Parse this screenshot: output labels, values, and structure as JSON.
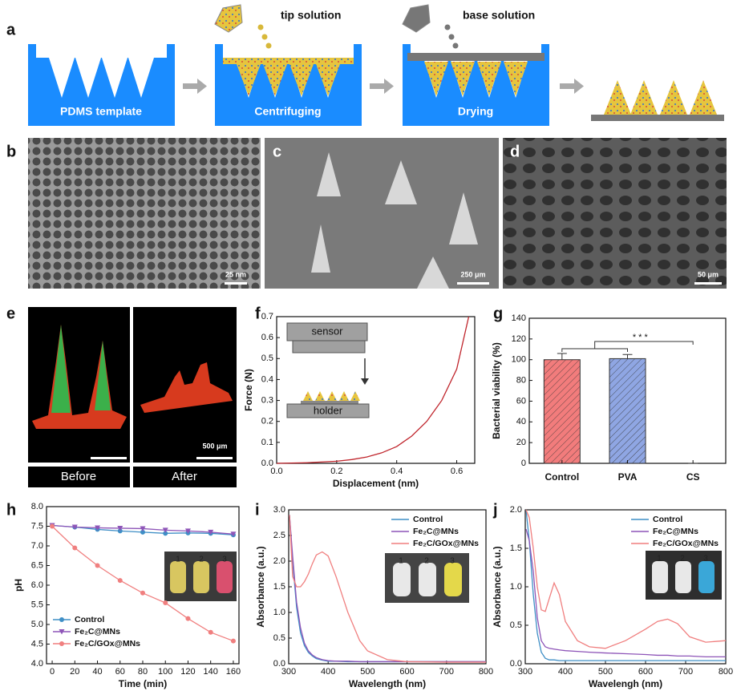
{
  "panel_labels": [
    "a",
    "b",
    "c",
    "d",
    "e",
    "f",
    "g",
    "h",
    "i",
    "j"
  ],
  "panel_a": {
    "tip_label": "tip solution",
    "base_label": "base solution",
    "steps": [
      "PDMS template",
      "Centrifuging",
      "Drying"
    ]
  },
  "scale_bars": [
    "25 nm",
    "250 μm",
    "50 μm",
    "500 μm"
  ],
  "panel_e": {
    "captions": [
      "Before",
      "After"
    ]
  },
  "panel_f_inset": {
    "sensor": "sensor",
    "holder": "holder"
  },
  "inset_tube_numbers": [
    "1",
    "2",
    "3"
  ],
  "chart_data": [
    {
      "type": "line",
      "xlabel": "Displacement (nm)",
      "ylabel": "Force (N)",
      "x": [
        0,
        0.1,
        0.2,
        0.25,
        0.3,
        0.35,
        0.4,
        0.45,
        0.5,
        0.55,
        0.6,
        0.64
      ],
      "series": [
        {
          "color": "#c0262d",
          "values": [
            0,
            0.003,
            0.01,
            0.018,
            0.03,
            0.05,
            0.08,
            0.13,
            0.2,
            0.3,
            0.45,
            0.7
          ]
        }
      ],
      "xlim": [
        0,
        0.66
      ],
      "ylim": [
        0,
        0.7
      ],
      "xticks": [
        {
          "value": 0,
          "label": "0.0"
        },
        {
          "value": 0.2,
          "label": "0.2"
        },
        {
          "value": 0.4,
          "label": "0.4"
        },
        {
          "value": 0.6,
          "label": "0.6"
        }
      ],
      "yticks": [
        {
          "value": 0,
          "label": "0.0"
        },
        {
          "value": 0.1,
          "label": "0.1"
        },
        {
          "value": 0.2,
          "label": "0.2"
        },
        {
          "value": 0.3,
          "label": "0.3"
        },
        {
          "value": 0.4,
          "label": "0.4"
        },
        {
          "value": 0.5,
          "label": "0.5"
        },
        {
          "value": 0.6,
          "label": "0.6"
        },
        {
          "value": 0.7,
          "label": "0.7"
        }
      ]
    },
    {
      "type": "bar",
      "ylabel": "Bacterial viability (%)",
      "categories": [
        "Control",
        "PVA",
        "CS"
      ],
      "values": [
        100,
        101,
        0
      ],
      "errors": [
        6,
        4,
        0
      ],
      "colors": [
        "#f27c7c",
        "#8fa6e3",
        "#cccccc"
      ],
      "annotation": "* * *",
      "ylim": [
        0,
        140
      ],
      "yticks": [
        0,
        20,
        40,
        60,
        80,
        100,
        120,
        140
      ]
    },
    {
      "type": "line",
      "xlabel": "Time (min)",
      "ylabel": "pH",
      "legend": "lower left",
      "x": [
        0,
        20,
        40,
        60,
        80,
        100,
        120,
        140,
        160
      ],
      "series": [
        {
          "name": "Control",
          "color": "#3f8fc6",
          "marker": "circle",
          "values": [
            7.52,
            7.48,
            7.42,
            7.38,
            7.35,
            7.32,
            7.33,
            7.32,
            7.28
          ]
        },
        {
          "name": "Fe₂C@MNs",
          "color": "#8e55b8",
          "marker": "triangle",
          "values": [
            7.52,
            7.48,
            7.46,
            7.45,
            7.44,
            7.4,
            7.38,
            7.35,
            7.3
          ]
        },
        {
          "name": "Fe₂C/GOx@MNs",
          "color": "#f07f7f",
          "marker": "circle",
          "values": [
            7.5,
            6.95,
            6.5,
            6.12,
            5.8,
            5.55,
            5.15,
            4.8,
            4.58
          ]
        }
      ],
      "xlim": [
        -5,
        165
      ],
      "ylim": [
        4.0,
        8.0
      ],
      "xticks": [
        0,
        20,
        40,
        60,
        80,
        100,
        120,
        140,
        160
      ],
      "yticks": [
        {
          "value": 4,
          "label": "4.0"
        },
        {
          "value": 4.5,
          "label": "4.5"
        },
        {
          "value": 5,
          "label": "5.0"
        },
        {
          "value": 5.5,
          "label": "5.5"
        },
        {
          "value": 6,
          "label": "6.0"
        },
        {
          "value": 6.5,
          "label": "6.5"
        },
        {
          "value": 7,
          "label": "7.0"
        },
        {
          "value": 7.5,
          "label": "7.5"
        },
        {
          "value": 8,
          "label": "8.0"
        }
      ]
    },
    {
      "type": "line",
      "xlabel": "Wavelength (nm)",
      "ylabel": "Absorbance (a.u.)",
      "legend": "upper right",
      "x": [
        302,
        310,
        320,
        330,
        340,
        350,
        360,
        370,
        385,
        400,
        420,
        450,
        480,
        500,
        550,
        600,
        700,
        800
      ],
      "series": [
        {
          "name": "Control",
          "color": "#3f8fc6",
          "values": [
            2.9,
            2.0,
            1.1,
            0.6,
            0.35,
            0.22,
            0.15,
            0.1,
            0.07,
            0.05,
            0.05,
            0.04,
            0.04,
            0.04,
            0.04,
            0.04,
            0.04,
            0.04
          ]
        },
        {
          "name": "Fe₂C@MNs",
          "color": "#8e55b8",
          "values": [
            2.9,
            2.1,
            1.2,
            0.7,
            0.4,
            0.25,
            0.17,
            0.12,
            0.08,
            0.06,
            0.05,
            0.05,
            0.04,
            0.04,
            0.04,
            0.04,
            0.04,
            0.04
          ]
        },
        {
          "name": "Fe₂C/GOx@MNs",
          "color": "#f07f7f",
          "values": [
            2.9,
            1.7,
            1.5,
            1.5,
            1.6,
            1.75,
            1.95,
            2.12,
            2.18,
            2.1,
            1.7,
            1.0,
            0.45,
            0.25,
            0.08,
            0.04,
            0.03,
            0.03
          ]
        }
      ],
      "xlim": [
        300,
        800
      ],
      "ylim": [
        0,
        3.0
      ],
      "xticks": [
        300,
        400,
        500,
        600,
        700,
        800
      ],
      "yticks": [
        {
          "value": 0,
          "label": "0.0"
        },
        {
          "value": 0.5,
          "label": "0.5"
        },
        {
          "value": 1,
          "label": "1.0"
        },
        {
          "value": 1.5,
          "label": "1.5"
        },
        {
          "value": 2,
          "label": "2.0"
        },
        {
          "value": 2.5,
          "label": "2.5"
        },
        {
          "value": 3,
          "label": "3.0"
        }
      ]
    },
    {
      "type": "line",
      "xlabel": "Wavelengh (nm)",
      "ylabel": "Absorbance (a.u.)",
      "legend": "upper right",
      "x": [
        302,
        310,
        320,
        330,
        340,
        350,
        360,
        372,
        385,
        400,
        430,
        460,
        500,
        550,
        600,
        630,
        655,
        680,
        710,
        750,
        800
      ],
      "series": [
        {
          "name": "Control",
          "color": "#3f8fc6",
          "values": [
            2.0,
            1.6,
            0.9,
            0.4,
            0.15,
            0.07,
            0.05,
            0.05,
            0.04,
            0.04,
            0.04,
            0.04,
            0.04,
            0.04,
            0.04,
            0.04,
            0.04,
            0.04,
            0.04,
            0.04,
            0.04
          ]
        },
        {
          "name": "Fe₂C@MNs",
          "color": "#8e55b8",
          "values": [
            1.75,
            1.6,
            1.2,
            0.6,
            0.3,
            0.22,
            0.2,
            0.19,
            0.18,
            0.17,
            0.16,
            0.15,
            0.14,
            0.13,
            0.12,
            0.11,
            0.11,
            0.1,
            0.1,
            0.09,
            0.09
          ]
        },
        {
          "name": "Fe₂C/GOx@MNs",
          "color": "#f07f7f",
          "values": [
            2.0,
            1.9,
            1.5,
            1.0,
            0.7,
            0.68,
            0.85,
            1.05,
            0.9,
            0.55,
            0.3,
            0.22,
            0.2,
            0.3,
            0.45,
            0.55,
            0.58,
            0.52,
            0.35,
            0.28,
            0.3
          ]
        }
      ],
      "xlim": [
        300,
        800
      ],
      "ylim": [
        0,
        2.0
      ],
      "xticks": [
        300,
        400,
        500,
        600,
        700,
        800
      ],
      "yticks": [
        {
          "value": 0,
          "label": "0.0"
        },
        {
          "value": 0.5,
          "label": "0.5"
        },
        {
          "value": 1,
          "label": "1.0"
        },
        {
          "value": 1.5,
          "label": "1.5"
        },
        {
          "value": 2,
          "label": "2.0"
        }
      ]
    }
  ]
}
